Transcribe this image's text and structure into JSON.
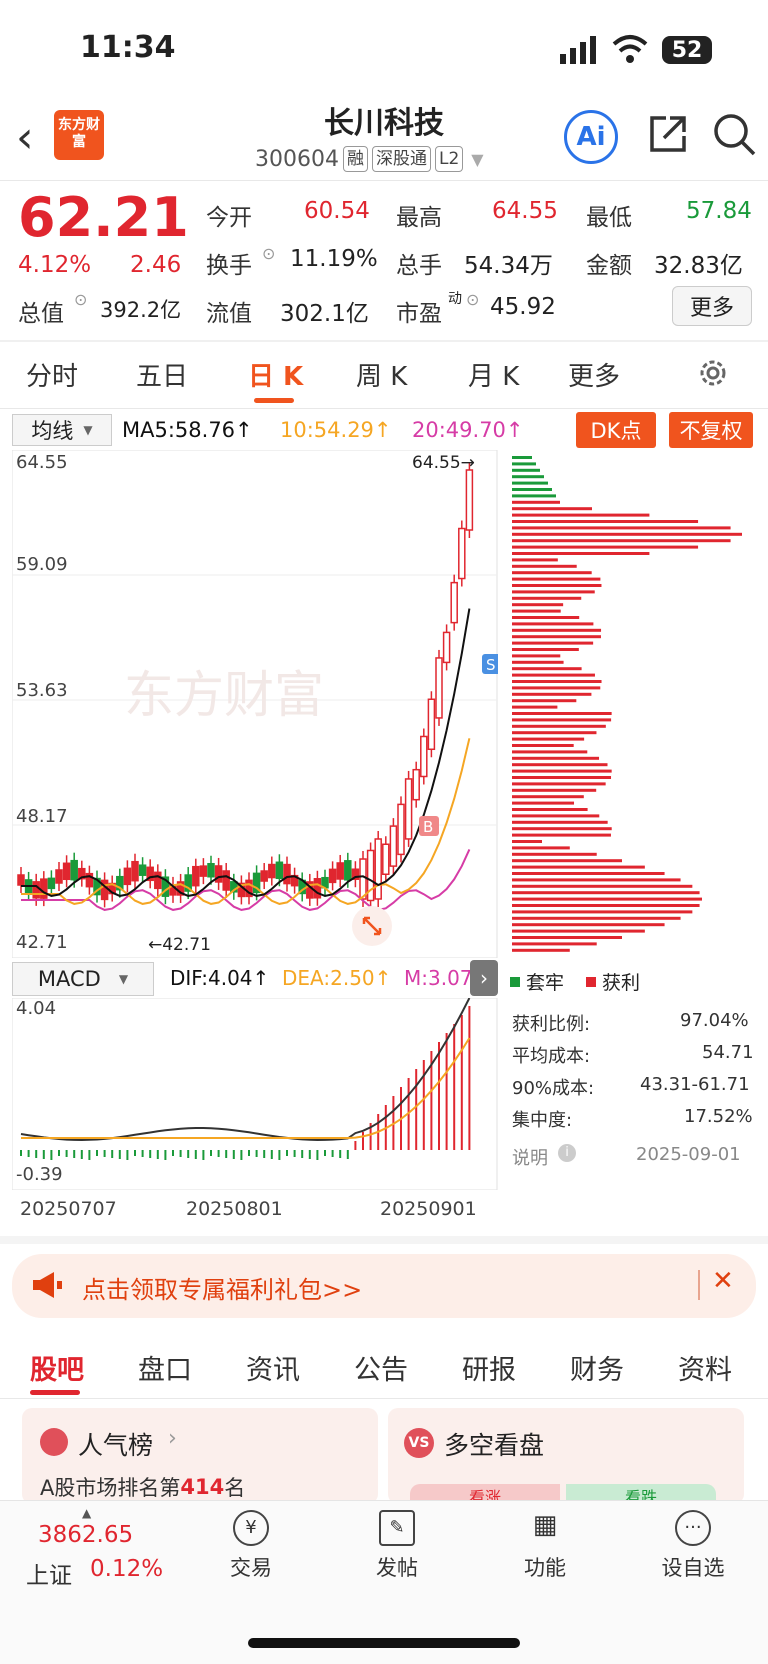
{
  "status_bar": {
    "time": "11:34",
    "battery": "52"
  },
  "header": {
    "logo_text": "东方财富",
    "stock_name": "长川科技",
    "stock_code": "300604",
    "tags": [
      "融",
      "深股通",
      "L2"
    ]
  },
  "quote": {
    "price": "62.21",
    "change_pct": "4.12%",
    "change": "2.46",
    "open_label": "今开",
    "open": "60.54",
    "high_label": "最高",
    "high": "64.55",
    "low_label": "最低",
    "low": "57.84",
    "turnover_label": "换手",
    "turnover": "11.19%",
    "volume_label": "总手",
    "volume": "54.34万",
    "amount_label": "金额",
    "amount": "32.83亿",
    "mktcap_label": "总值",
    "mktcap": "392.2亿",
    "float_label": "流值",
    "float": "302.1亿",
    "pe_label": "市盈",
    "pe_sup": "动",
    "pe": "45.92",
    "more_label": "更多"
  },
  "period_tabs": [
    "分时",
    "五日",
    "日 K",
    "周 K",
    "月 K",
    "更多"
  ],
  "ma": {
    "select_label": "均线",
    "ma5": "MA5:58.76↑",
    "ma10": "10:54.29↑",
    "ma20": "20:49.70↑",
    "dk_label": "DK点",
    "fq_label": "不复权"
  },
  "kline": {
    "y_labels": [
      "64.55",
      "59.09",
      "53.63",
      "48.17",
      "42.71"
    ],
    "high_mark": "64.55→",
    "low_mark": "←42.71",
    "watermark": "东方财富"
  },
  "macd": {
    "select_label": "MACD",
    "dif": "DIF:4.04↑",
    "dea": "DEA:2.50↑",
    "m": "M:3.07",
    "top_label": "4.04",
    "bottom_label": "-0.39",
    "dates": [
      "20250707",
      "20250801",
      "20250901"
    ]
  },
  "chip": {
    "legend_trap": "套牢",
    "legend_profit": "获利",
    "rows": [
      {
        "label": "获利比例:",
        "value": "97.04%"
      },
      {
        "label": "平均成本:",
        "value": "54.71"
      },
      {
        "label": "90%成本:",
        "value": "43.31-61.71"
      },
      {
        "label": "集中度:",
        "value": "17.52%"
      }
    ],
    "note_label": "说明",
    "note_date": "2025-09-01"
  },
  "banner": {
    "text": "点击领取专属福利礼包>>"
  },
  "bottom_tabs": [
    "股吧",
    "盘口",
    "资讯",
    "公告",
    "研报",
    "财务",
    "资料"
  ],
  "cards": {
    "rank_title": "人气榜",
    "rank_text_prefix": "A股市场排名第",
    "rank_num": "414",
    "rank_text_suffix": "名",
    "ls_title": "多空看盘",
    "ls_up": "看涨",
    "ls_down": "看跌"
  },
  "footer": {
    "index_value": "3862.65",
    "index_name": "上证",
    "index_pct": "0.12%",
    "nav": [
      "交易",
      "发帖",
      "功能",
      "设自选"
    ]
  },
  "colors": {
    "up": "#e0262f",
    "down": "#1a9a3a",
    "accent": "#f0541e",
    "ma5": "#111111",
    "ma10": "#f5a623",
    "ma20": "#d63ca6"
  }
}
